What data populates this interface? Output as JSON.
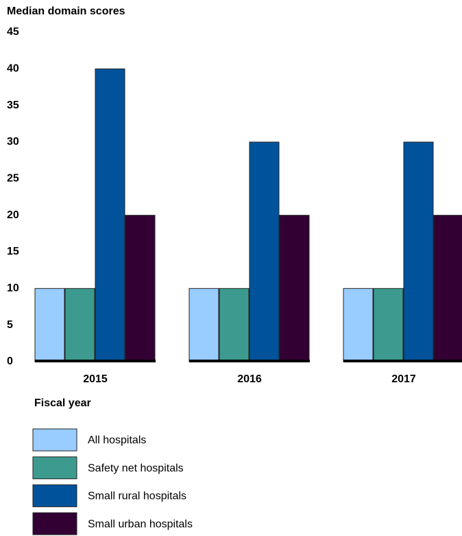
{
  "chart_data": {
    "type": "bar",
    "y_axis_label": "Median domain scores",
    "x_axis_label": "Fiscal year",
    "categories": [
      "2015",
      "2016",
      "2017"
    ],
    "series": [
      {
        "name": "All hospitals",
        "color": "#99ccff",
        "values": [
          10,
          10,
          10
        ]
      },
      {
        "name": "Safety net hospitals",
        "color": "#3d9a8f",
        "values": [
          10,
          10,
          10
        ]
      },
      {
        "name": "Small rural hospitals",
        "color": "#00539b",
        "values": [
          40,
          30,
          30
        ]
      },
      {
        "name": "Small urban hospitals",
        "color": "#330033",
        "values": [
          20,
          20,
          20
        ]
      }
    ],
    "ylim": [
      0,
      45
    ],
    "yticks": [
      0,
      5,
      10,
      15,
      20,
      25,
      30,
      35,
      40,
      45
    ],
    "grid": false
  }
}
